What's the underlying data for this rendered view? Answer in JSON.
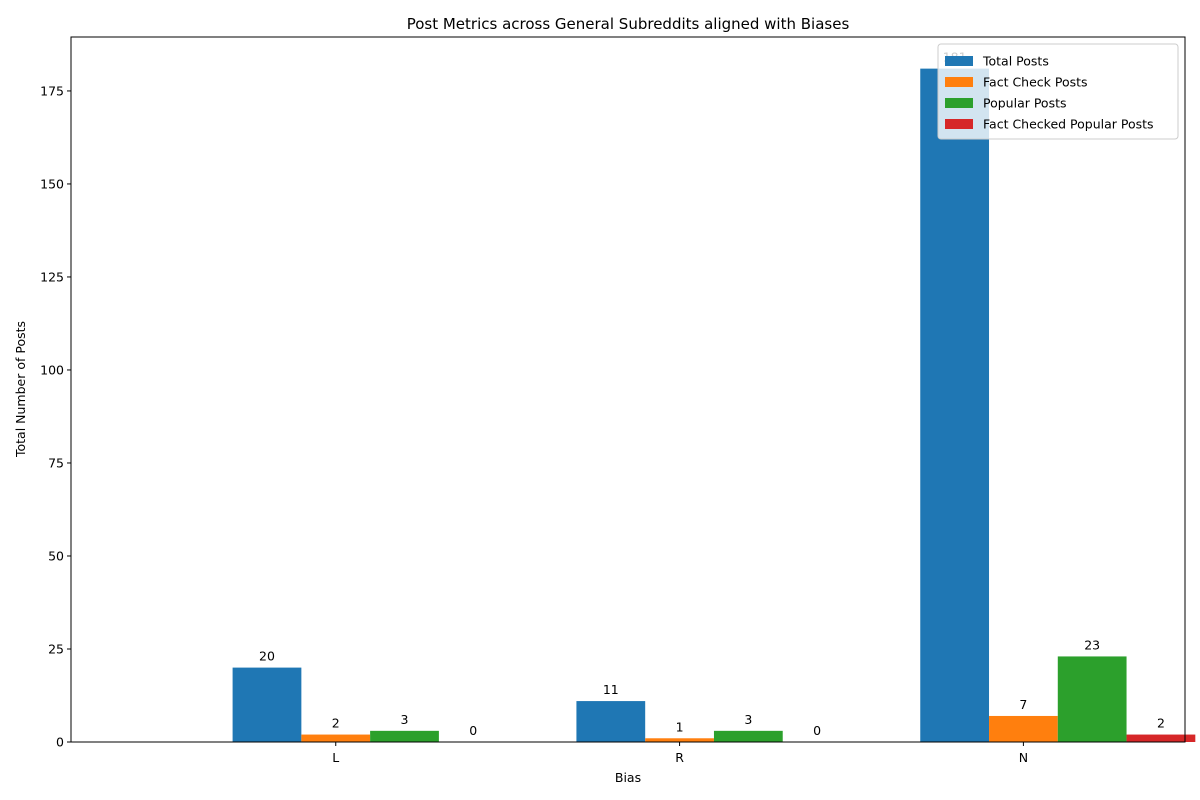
{
  "chart_data": {
    "type": "bar",
    "title": "Post Metrics across General Subreddits aligned with Biases",
    "xlabel": "Bias",
    "ylabel": "Total Number of Posts",
    "categories": [
      "L",
      "R",
      "N"
    ],
    "ylim": [
      0,
      189.5
    ],
    "yticks": [
      0,
      25,
      50,
      75,
      100,
      125,
      150,
      175
    ],
    "grid": false,
    "legend_position": "top-right",
    "series": [
      {
        "name": "Total Posts",
        "color": "#1f77b4",
        "values": [
          20,
          11,
          181
        ]
      },
      {
        "name": "Fact Check Posts",
        "color": "#ff7f0e",
        "values": [
          2,
          1,
          7
        ]
      },
      {
        "name": "Popular Posts",
        "color": "#2ca02c",
        "values": [
          3,
          3,
          23
        ]
      },
      {
        "name": "Fact Checked Popular Posts",
        "color": "#d62728",
        "values": [
          0,
          0,
          2
        ]
      }
    ]
  }
}
